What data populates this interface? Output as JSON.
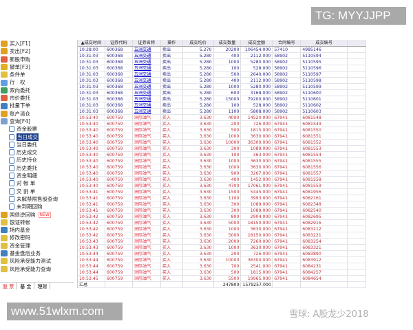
{
  "sidebar": {
    "items": [
      {
        "label": "买入[F1]",
        "icon": "buy-icon",
        "color": "#e0a020"
      },
      {
        "label": "卖出[F2]",
        "icon": "sell-icon",
        "color": "#e0a020"
      },
      {
        "label": "新股申购",
        "icon": "ipo-icon",
        "color": "#e06040"
      },
      {
        "label": "撤单[F3]",
        "icon": "cancel-order-icon",
        "color": "#e0b020"
      },
      {
        "label": "条件单",
        "icon": "conditional-order-icon",
        "color": "#e0c040"
      },
      {
        "label": "行　权",
        "icon": "exercise-icon",
        "color": "#60a0e0"
      },
      {
        "label": "双向委托",
        "icon": "two-way-order-icon",
        "color": "#40a060"
      },
      {
        "label": "市价委托",
        "icon": "market-order-icon",
        "color": "#e06040"
      },
      {
        "label": "批量下单",
        "icon": "batch-order-icon",
        "color": "#4080c0"
      },
      {
        "label": "账户清仓",
        "icon": "clear-account-icon",
        "color": "#e0a020"
      },
      {
        "label": "查询[F4]",
        "icon": "query-icon",
        "color": "#80a0d0"
      }
    ],
    "query_children": [
      {
        "label": "资金股票"
      },
      {
        "label": "当日成交",
        "selected": true
      },
      {
        "label": "当日委托"
      },
      {
        "label": "历史成交"
      },
      {
        "label": "历史持仓"
      },
      {
        "label": "历史委托"
      },
      {
        "label": "资金明细"
      },
      {
        "label": "对 帐 单"
      },
      {
        "label": "交 割 单"
      },
      {
        "label": "未解禁限售股查询"
      },
      {
        "label": "未到期回购"
      }
    ],
    "more_items": [
      {
        "label": "国债逆回购",
        "badge": "NEW",
        "icon": "bond-repo-icon",
        "color": "#e0a020"
      },
      {
        "label": "银证转帐",
        "icon": "bank-transfer-icon",
        "color": "#e0c040"
      },
      {
        "label": "场内基金",
        "icon": "fund-icon",
        "color": "#4080c0"
      },
      {
        "label": "修改密码",
        "icon": "password-icon",
        "color": "#e0c040"
      },
      {
        "label": "资金管理",
        "icon": "fund-management-icon",
        "color": "#e0c040"
      },
      {
        "label": "基金盘后业务",
        "icon": "after-hours-fund-icon",
        "color": "#4080c0"
      },
      {
        "label": "风险承受能力测试",
        "icon": "risk-test-icon",
        "color": "#e0c040"
      },
      {
        "label": "风险承受能力查询",
        "icon": "risk-query-icon",
        "color": "#e0c040"
      }
    ]
  },
  "tabs": [
    {
      "label": "股 票",
      "active": true
    },
    {
      "label": "基 金"
    },
    {
      "label": "理财"
    }
  ],
  "table": {
    "headers": [
      "▲成交时间",
      "证券代码",
      "证券名称",
      "操作",
      "成交均价",
      "成交数量",
      "成交金额",
      "合同编号",
      "成交编号",
      ""
    ],
    "rows": [
      [
        "10:28:00",
        "600368",
        "五洲交通",
        "卖出",
        "5.270",
        "20200",
        "106454.000",
        "57410",
        "4985146"
      ],
      [
        "10:31:03",
        "600368",
        "五洲交通",
        "卖出",
        "5.280",
        "400",
        "2112.000",
        "58902",
        "5110594"
      ],
      [
        "10:31:03",
        "600368",
        "五洲交通",
        "卖出",
        "5.280",
        "1000",
        "5280.000",
        "58902",
        "5110595"
      ],
      [
        "10:31:03",
        "600368",
        "五洲交通",
        "卖出",
        "5.280",
        "100",
        "528.000",
        "58902",
        "5110596"
      ],
      [
        "10:31:03",
        "600368",
        "五洲交通",
        "卖出",
        "5.280",
        "500",
        "2640.000",
        "58902",
        "5110597"
      ],
      [
        "10:31:03",
        "600368",
        "五洲交通",
        "卖出",
        "5.280",
        "400",
        "2112.000",
        "58902",
        "5110598"
      ],
      [
        "10:31:03",
        "600368",
        "五洲交通",
        "卖出",
        "5.280",
        "1000",
        "5280.000",
        "58902",
        "5110599"
      ],
      [
        "10:31:03",
        "600368",
        "五洲交通",
        "卖出",
        "5.280",
        "600",
        "3168.000",
        "58902",
        "5110600"
      ],
      [
        "10:31:03",
        "600368",
        "五洲交通",
        "卖出",
        "5.280",
        "15000",
        "79200.000",
        "58902",
        "5110601"
      ],
      [
        "10:31:03",
        "600368",
        "五洲交通",
        "卖出",
        "5.280",
        "100",
        "528.000",
        "58902",
        "5110602"
      ],
      [
        "10:31:03",
        "600368",
        "五洲交通",
        "卖出",
        "5.280",
        "1100",
        "5808.000",
        "58902",
        "5110603"
      ],
      [
        "10:53:40",
        "600759",
        "洲际油气",
        "买入",
        "3.630",
        "4000",
        "14520.000",
        "67941",
        "6081548"
      ],
      [
        "10:53:40",
        "600759",
        "洲际油气",
        "买入",
        "3.630",
        "200",
        "726.000",
        "67941",
        "6081549"
      ],
      [
        "10:53:40",
        "600759",
        "洲际油气",
        "买入",
        "3.630",
        "500",
        "1815.000",
        "67941",
        "6081550"
      ],
      [
        "10:53:40",
        "600759",
        "洲际油气",
        "买入",
        "3.630",
        "1000",
        "3630.000",
        "67941",
        "6081551"
      ],
      [
        "10:53:40",
        "600759",
        "洲际油气",
        "买入",
        "3.630",
        "10000",
        "36300.000",
        "67941",
        "6081552"
      ],
      [
        "10:53:40",
        "600759",
        "洲际油气",
        "买入",
        "3.630",
        "300",
        "1089.000",
        "67941",
        "6081553"
      ],
      [
        "10:53:40",
        "600759",
        "洲际油气",
        "买入",
        "3.630",
        "100",
        "363.000",
        "67941",
        "6081554"
      ],
      [
        "10:53:40",
        "600759",
        "洲际油气",
        "买入",
        "3.630",
        "1000",
        "3630.000",
        "67941",
        "6081555"
      ],
      [
        "10:53:40",
        "600759",
        "洲际油气",
        "买入",
        "3.630",
        "1000",
        "3630.000",
        "67941",
        "6081556"
      ],
      [
        "10:53:40",
        "600759",
        "洲际油气",
        "买入",
        "3.630",
        "900",
        "3267.000",
        "67941",
        "6081557"
      ],
      [
        "10:53:40",
        "600759",
        "洲际油气",
        "买入",
        "3.630",
        "400",
        "1452.000",
        "67941",
        "6081558"
      ],
      [
        "10:53:40",
        "600759",
        "洲际油气",
        "买入",
        "3.630",
        "4700",
        "17061.000",
        "67941",
        "6081559"
      ],
      [
        "10:53:41",
        "600759",
        "洲际油气",
        "买入",
        "3.630",
        "1500",
        "5445.000",
        "67941",
        "6081956"
      ],
      [
        "10:53:41",
        "600759",
        "洲际油气",
        "买入",
        "3.630",
        "1100",
        "3993.000",
        "67941",
        "6082161"
      ],
      [
        "10:53:41",
        "600759",
        "洲际油气",
        "买入",
        "3.630",
        "300",
        "1089.000",
        "67941",
        "6082348"
      ],
      [
        "10:53:41",
        "600759",
        "洲际油气",
        "买入",
        "3.630",
        "300",
        "1089.000",
        "67941",
        "6082540"
      ],
      [
        "10:53:42",
        "600759",
        "洲际油气",
        "买入",
        "3.630",
        "800",
        "2904.000",
        "67941",
        "6082695"
      ],
      [
        "10:53:42",
        "600759",
        "洲际油气",
        "买入",
        "3.630",
        "5000",
        "18150.000",
        "67941",
        "6082916"
      ],
      [
        "10:53:42",
        "600759",
        "洲际油气",
        "买入",
        "3.630",
        "1000",
        "3630.000",
        "67941",
        "6083212"
      ],
      [
        "10:53:42",
        "600759",
        "洲际油气",
        "买入",
        "3.630",
        "5000",
        "18150.000",
        "67941",
        "6083221"
      ],
      [
        "10:53:43",
        "600759",
        "洲际油气",
        "买入",
        "3.630",
        "2000",
        "7260.000",
        "67941",
        "6083254"
      ],
      [
        "10:53:43",
        "600759",
        "洲际油气",
        "买入",
        "3.630",
        "1000",
        "3630.000",
        "67941",
        "6083321"
      ],
      [
        "10:53:44",
        "600759",
        "洲际油气",
        "买入",
        "3.630",
        "200",
        "726.000",
        "67941",
        "6083890"
      ],
      [
        "10:53:44",
        "600759",
        "洲际油气",
        "买入",
        "3.630",
        "10000",
        "36300.000",
        "67941",
        "6083912"
      ],
      [
        "10:53:44",
        "600759",
        "洲际油气",
        "买入",
        "3.630",
        "700",
        "2541.000",
        "67941",
        "6084231"
      ],
      [
        "10:53:44",
        "600759",
        "洲际油气",
        "买入",
        "3.630",
        "500",
        "1815.000",
        "67941",
        "6084257"
      ],
      [
        "10:53:45",
        "600759",
        "洲际油气",
        "买入",
        "3.630",
        "5500",
        "19965.000",
        "67941",
        "6084654"
      ]
    ],
    "total": {
      "label": "汇总",
      "quantity": "247800",
      "amount": "1579257.000"
    }
  },
  "watermarks": {
    "tg": "TG: MYYJJPP",
    "site": "www.51wlxm.com",
    "xueqiu": "雪球: A股龙少2018"
  }
}
